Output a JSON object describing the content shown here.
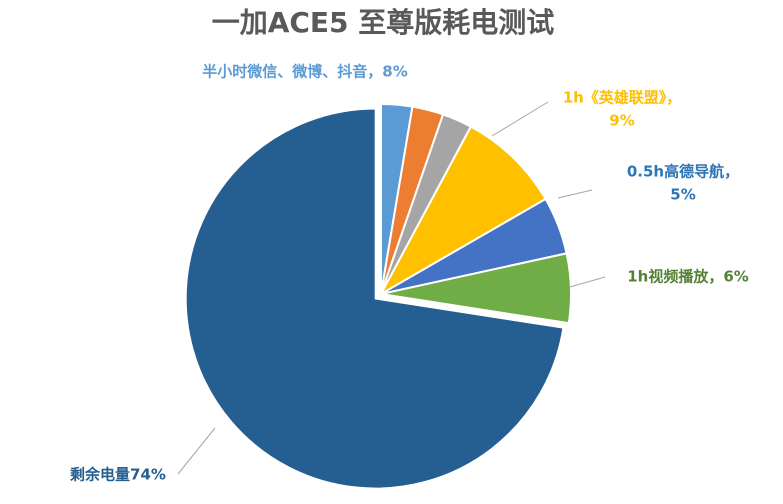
{
  "chart_data": {
    "type": "pie",
    "title": "一加ACE5 至尊版耗电测试",
    "categories": [
      [
        "半小时微信、微博、抖音，8%"
      ],
      null,
      null,
      [
        "1h《英雄联盟》，",
        "9%"
      ],
      [
        "0.5h高德导航，",
        "5%"
      ],
      [
        "1h视频播放，6%"
      ],
      [
        "剩余电量74%"
      ]
    ],
    "values": [
      2.7,
      2.7,
      2.6,
      9,
      5,
      6,
      74
    ],
    "colors": [
      "#5b9bd5",
      "#ed7d31",
      "#a5a5a5",
      "#ffc000",
      "#4472c4",
      "#70ad47",
      "#255e91"
    ],
    "label_colors": [
      "#5b9bd5",
      null,
      null,
      "#ffc000",
      "#2e75b6",
      "#548235",
      "#255e91"
    ]
  }
}
